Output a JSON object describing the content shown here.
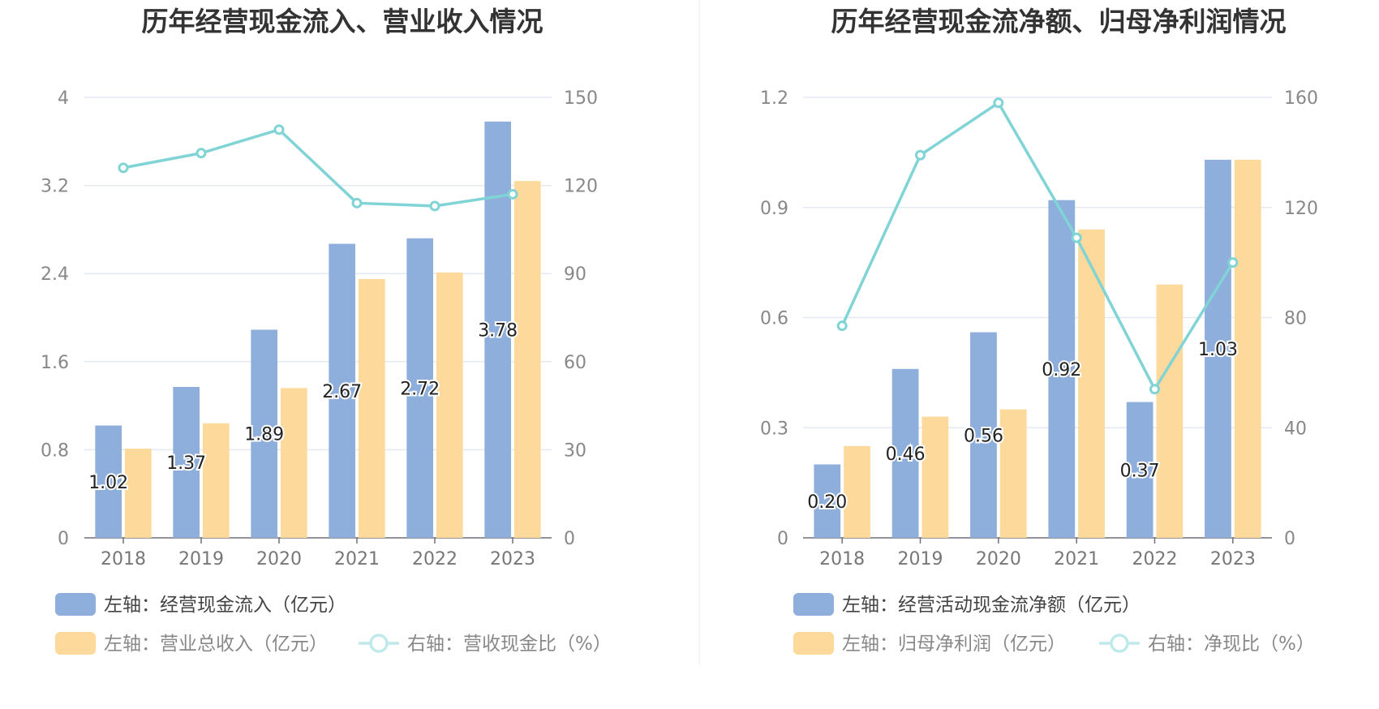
{
  "chart_data": [
    {
      "type": "bar",
      "title": "历年经营现金流入、营业收入情况",
      "categories": [
        "2018",
        "2019",
        "2020",
        "2021",
        "2022",
        "2023"
      ],
      "left_axis": {
        "ticks": [
          "0",
          "0.8",
          "1.6",
          "2.4",
          "3.2",
          "4"
        ],
        "ylim": [
          0,
          4
        ]
      },
      "right_axis": {
        "ticks": [
          "0",
          "30",
          "60",
          "90",
          "120",
          "150"
        ],
        "ylim": [
          0,
          150
        ]
      },
      "series": [
        {
          "name": "左轴：经营现金流入（亿元）",
          "type": "bar",
          "axis": "left",
          "color": "#8eaedb",
          "values": [
            1.02,
            1.37,
            1.89,
            2.67,
            2.72,
            3.78
          ],
          "labels": [
            "1.02",
            "1.37",
            "1.89",
            "2.67",
            "2.72",
            "3.78"
          ]
        },
        {
          "name": "左轴：营业总收入（亿元）",
          "type": "bar",
          "axis": "left",
          "color": "#fdd99b",
          "values": [
            0.81,
            1.04,
            1.36,
            2.35,
            2.41,
            3.24
          ]
        },
        {
          "name": "右轴：营收现金比（%）",
          "type": "line",
          "axis": "right",
          "color": "#80d4d6",
          "values": [
            126,
            131,
            139,
            114,
            113,
            117
          ]
        }
      ],
      "grid": true,
      "legend_position": "bottom"
    },
    {
      "type": "bar",
      "title": "历年经营现金流净额、归母净利润情况",
      "categories": [
        "2018",
        "2019",
        "2020",
        "2021",
        "2022",
        "2023"
      ],
      "left_axis": {
        "ticks": [
          "0",
          "0.3",
          "0.6",
          "0.9",
          "1.2"
        ],
        "ylim": [
          0,
          1.2
        ]
      },
      "right_axis": {
        "ticks": [
          "0",
          "40",
          "80",
          "120",
          "160"
        ],
        "ylim": [
          0,
          160
        ]
      },
      "series": [
        {
          "name": "左轴：经营活动现金流净额（亿元）",
          "type": "bar",
          "axis": "left",
          "color": "#8eaedb",
          "values": [
            0.2,
            0.46,
            0.56,
            0.92,
            0.37,
            1.03
          ],
          "labels": [
            "0.20",
            "0.46",
            "0.56",
            "0.92",
            "0.37",
            "1.03"
          ]
        },
        {
          "name": "左轴：归母净利润（亿元）",
          "type": "bar",
          "axis": "left",
          "color": "#fdd99b",
          "values": [
            0.25,
            0.33,
            0.35,
            0.84,
            0.69,
            1.03
          ]
        },
        {
          "name": "右轴：净现比（%）",
          "type": "line",
          "axis": "right",
          "color": "#80d4d6",
          "values": [
            77,
            139,
            158,
            109,
            54,
            100
          ]
        }
      ],
      "grid": true,
      "legend_position": "bottom"
    }
  ]
}
